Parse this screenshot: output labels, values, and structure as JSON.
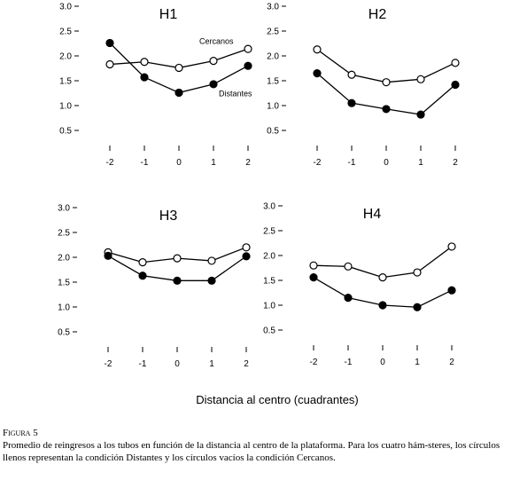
{
  "chart_data": [
    {
      "type": "line",
      "title": "H1",
      "x": [
        -2,
        -1,
        0,
        1,
        2
      ],
      "ylim": [
        0,
        3.0
      ],
      "yticks": [
        "3.0",
        "2.5",
        "2.0",
        "1.5",
        "1.0",
        "0.5"
      ],
      "ytick_values": [
        3.0,
        2.5,
        2.0,
        1.5,
        1.0,
        0.5
      ],
      "xticks": [
        "-2",
        "-1",
        "0",
        "1",
        "2"
      ],
      "series": [
        {
          "name": "Cercanos",
          "marker": "open",
          "values": [
            1.83,
            1.88,
            1.76,
            1.9,
            2.14
          ]
        },
        {
          "name": "Distantes",
          "marker": "filled",
          "values": [
            2.26,
            1.57,
            1.26,
            1.43,
            1.8
          ]
        }
      ],
      "grid": false
    },
    {
      "type": "line",
      "title": "H2",
      "x": [
        -2,
        -1,
        0,
        1,
        2
      ],
      "ylim": [
        0,
        3.0
      ],
      "yticks": [
        "3.0",
        "2.5",
        "2.0",
        "1.5",
        "1.0",
        "0.5"
      ],
      "ytick_values": [
        3.0,
        2.5,
        2.0,
        1.5,
        1.0,
        0.5
      ],
      "xticks": [
        "-2",
        "-1",
        "0",
        "1",
        "2"
      ],
      "series": [
        {
          "marker": "open",
          "values": [
            2.13,
            1.62,
            1.47,
            1.53,
            1.86
          ]
        },
        {
          "marker": "filled",
          "values": [
            1.65,
            1.05,
            0.93,
            0.82,
            1.42
          ]
        }
      ],
      "grid": false
    },
    {
      "type": "line",
      "title": "H3",
      "x": [
        -2,
        -1,
        0,
        1,
        2
      ],
      "ylim": [
        0,
        3.0
      ],
      "yticks": [
        "3.0",
        "2.5",
        "2.0",
        "1.5",
        "1.0",
        "0.5"
      ],
      "ytick_values": [
        3.0,
        2.5,
        2.0,
        1.5,
        1.0,
        0.5
      ],
      "xticks": [
        "-2",
        "-1",
        "0",
        "1",
        "2"
      ],
      "series": [
        {
          "marker": "open",
          "values": [
            2.1,
            1.9,
            1.98,
            1.93,
            2.2
          ]
        },
        {
          "marker": "filled",
          "values": [
            2.03,
            1.63,
            1.53,
            1.53,
            2.02
          ]
        }
      ],
      "grid": false
    },
    {
      "type": "line",
      "title": "H4",
      "x": [
        -2,
        -1,
        0,
        1,
        2
      ],
      "ylim": [
        0,
        3.0
      ],
      "yticks": [
        "3.0",
        "2.5",
        "2.0",
        "1.5",
        "1.0",
        "0.5"
      ],
      "ytick_values": [
        3.0,
        2.5,
        2.0,
        1.5,
        1.0,
        0.5
      ],
      "xticks": [
        "-2",
        "-1",
        "0",
        "1",
        "2"
      ],
      "series": [
        {
          "marker": "open",
          "values": [
            1.8,
            1.78,
            1.56,
            1.66,
            2.18
          ]
        },
        {
          "marker": "filled",
          "values": [
            1.56,
            1.15,
            1.0,
            0.96,
            1.3
          ]
        }
      ],
      "grid": false
    }
  ],
  "xlabel": "Distancia al centro (cuadrantes)",
  "caption": {
    "label": "Figura 5",
    "text": "Promedio de reingresos a los tubos en función de la distancia al centro de la plataforma. Para los cuatro hám-steres, los círculos llenos representan la condición Distantes y los círculos vacíos la condición Cercanos."
  }
}
